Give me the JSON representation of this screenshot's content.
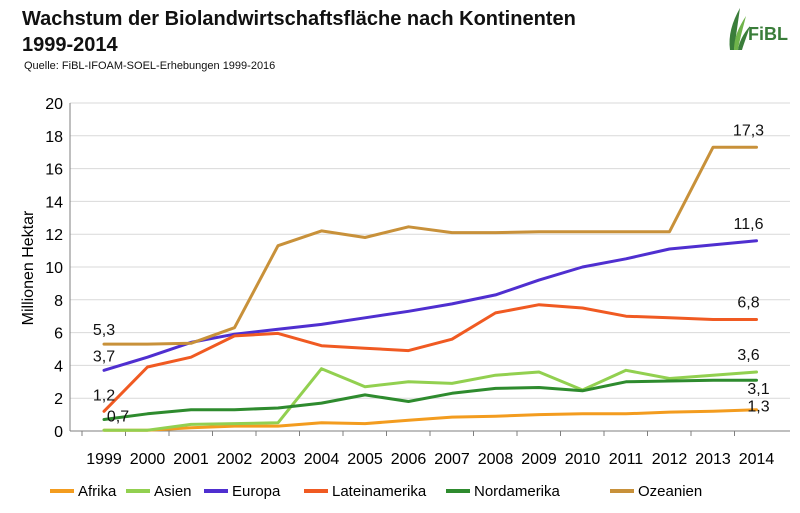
{
  "header": {
    "title_line1": "Wachstum der Biolandwirtschaftsfläche nach Kontinenten",
    "title_line2": "1999-2014",
    "source": "Quelle: FiBL-IFOAM-SOEL-Erhebungen 1999-2016",
    "logo_text": "FiBL"
  },
  "colors": {
    "Afrika": "#f39c1f",
    "Asien": "#92d050",
    "Europa": "#4f2fd0",
    "Lateinamerika": "#f05a22",
    "Nordamerika": "#2e8b2e",
    "Ozeanien": "#c8913a",
    "grid": "#d9d9d9",
    "axis": "#7f7f7f"
  },
  "chart_data": {
    "type": "line",
    "title": "Wachstum der Biolandwirtschaftsfläche nach Kontinenten 1999-2014",
    "xlabel": "",
    "ylabel": "Millionen Hektar",
    "ylim": [
      0,
      20
    ],
    "yticks": [
      "0",
      "2",
      "4",
      "6",
      "8",
      "10",
      "12",
      "14",
      "16",
      "18",
      "20"
    ],
    "grid": true,
    "legend": "bottom",
    "categories": [
      "1999",
      "2000",
      "2001",
      "2002",
      "2003",
      "2004",
      "2005",
      "2006",
      "2007",
      "2008",
      "2009",
      "2010",
      "2011",
      "2012",
      "2013",
      "2014"
    ],
    "series": [
      {
        "name": "Afrika",
        "values": [
          0.05,
          0.05,
          0.2,
          0.3,
          0.3,
          0.5,
          0.45,
          0.65,
          0.85,
          0.9,
          1.0,
          1.05,
          1.05,
          1.15,
          1.2,
          1.3
        ]
      },
      {
        "name": "Asien",
        "values": [
          0.05,
          0.05,
          0.4,
          0.45,
          0.5,
          3.8,
          2.7,
          3.0,
          2.9,
          3.4,
          3.6,
          2.5,
          3.7,
          3.2,
          3.4,
          3.6
        ]
      },
      {
        "name": "Europa",
        "values": [
          3.7,
          4.5,
          5.4,
          5.9,
          6.2,
          6.5,
          6.9,
          7.3,
          7.75,
          8.3,
          9.2,
          10.0,
          10.5,
          11.1,
          11.35,
          11.6
        ]
      },
      {
        "name": "Lateinamerika",
        "values": [
          1.2,
          3.9,
          4.5,
          5.8,
          5.95,
          5.2,
          5.05,
          4.9,
          5.6,
          7.2,
          7.7,
          7.5,
          7.0,
          6.9,
          6.8,
          6.8
        ]
      },
      {
        "name": "Nordamerika",
        "values": [
          0.7,
          1.05,
          1.3,
          1.3,
          1.4,
          1.7,
          2.2,
          1.8,
          2.3,
          2.6,
          2.65,
          2.45,
          3.0,
          3.05,
          3.1,
          3.1
        ]
      },
      {
        "name": "Ozeanien",
        "values": [
          5.3,
          5.3,
          5.35,
          6.3,
          11.3,
          12.2,
          11.8,
          12.45,
          12.1,
          12.1,
          12.15,
          12.15,
          12.15,
          12.15,
          17.3,
          17.3
        ]
      }
    ],
    "data_labels": [
      {
        "series": "Ozeanien",
        "index": 0,
        "text": "5,3"
      },
      {
        "series": "Europa",
        "index": 0,
        "text": "3,7"
      },
      {
        "series": "Lateinamerika",
        "index": 0,
        "text": "1,2"
      },
      {
        "series": "Nordamerika",
        "index": 0,
        "text": "0,7"
      },
      {
        "series": "Ozeanien",
        "index": 15,
        "text": "17,3"
      },
      {
        "series": "Europa",
        "index": 15,
        "text": "11,6"
      },
      {
        "series": "Lateinamerika",
        "index": 15,
        "text": "6,8"
      },
      {
        "series": "Asien",
        "index": 15,
        "text": "3,6"
      },
      {
        "series": "Nordamerika",
        "index": 15,
        "text": "3,1"
      },
      {
        "series": "Afrika",
        "index": 15,
        "text": "1,3"
      }
    ]
  }
}
